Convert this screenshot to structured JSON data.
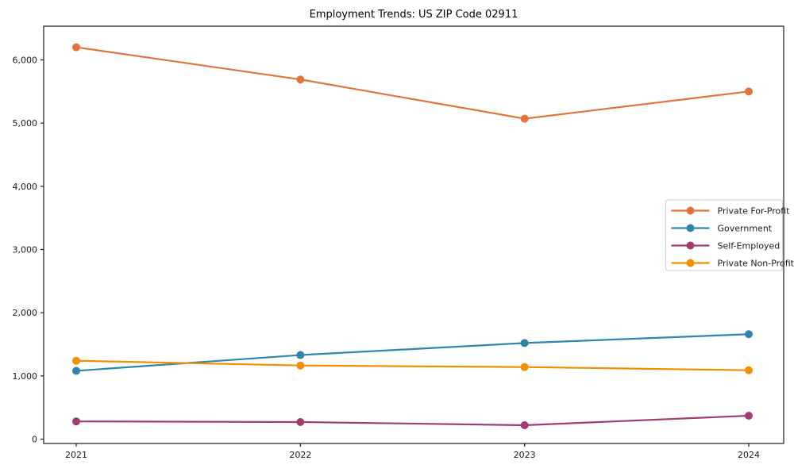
{
  "chart_data": {
    "type": "line",
    "title": "Employment Trends: US ZIP Code 02911",
    "x": [
      "2021",
      "2022",
      "2023",
      "2024"
    ],
    "series": [
      {
        "name": "Private For-Profit",
        "color": "#E2743B",
        "values": [
          6200,
          5690,
          5070,
          5500
        ]
      },
      {
        "name": "Government",
        "color": "#2E86AB",
        "values": [
          1080,
          1330,
          1520,
          1660
        ]
      },
      {
        "name": "Self-Employed",
        "color": "#A23B72",
        "values": [
          280,
          270,
          220,
          370
        ]
      },
      {
        "name": "Private Non-Profit",
        "color": "#F18F01",
        "values": [
          1240,
          1165,
          1140,
          1090
        ]
      }
    ],
    "xlabel": "",
    "ylabel": "",
    "ylim": [
      0,
      6000
    ],
    "yticks": [
      0,
      1000,
      2000,
      3000,
      4000,
      5000,
      6000
    ],
    "ytick_labels": [
      "0",
      "1,000",
      "2,000",
      "3,000",
      "4,000",
      "5,000",
      "6,000"
    ],
    "grid": false,
    "legend_position": "center-right",
    "axis_color": "#1a1a1a",
    "legend_border_color": "#cccccc",
    "legend_background": "#ffffff"
  }
}
